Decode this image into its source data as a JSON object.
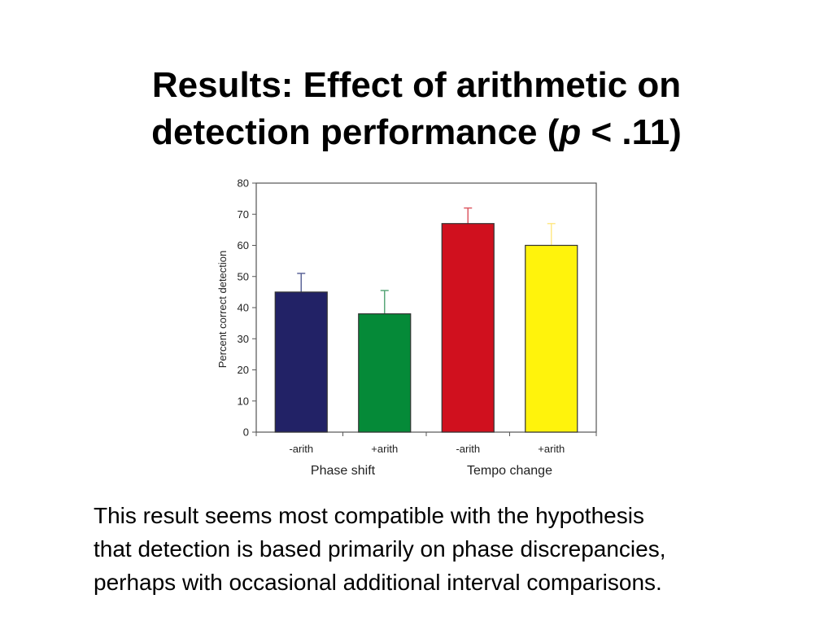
{
  "title": {
    "line1": "Results: Effect of arithmetic on",
    "line2_prefix": "detection performance (",
    "line2_italic": "p",
    "line2_suffix": " < .11)"
  },
  "chart_data": {
    "type": "bar",
    "ylabel": "Percent correct detection",
    "xlabel": "",
    "ylim": [
      0,
      80
    ],
    "yticks": [
      0,
      10,
      20,
      30,
      40,
      50,
      60,
      70,
      80
    ],
    "categories": [
      "-arith",
      "+arith",
      "-arith",
      "+arith"
    ],
    "groups": [
      "Phase shift",
      "Tempo change"
    ],
    "values": [
      45,
      38,
      67,
      60
    ],
    "error_bars": [
      6,
      7.5,
      5,
      7
    ],
    "colors": [
      "#222266",
      "#058a38",
      "#d0101e",
      "#fff30c"
    ],
    "errorbar_colors": [
      "#5d6699",
      "#5aa77a",
      "#dd5a64",
      "#ffe98a"
    ],
    "grid": false
  },
  "body": {
    "line1": "This result seems most compatible with the hypothesis",
    "line2": "that detection is based primarily on phase discrepancies,",
    "line3": "perhaps with occasional additional interval comparisons."
  }
}
